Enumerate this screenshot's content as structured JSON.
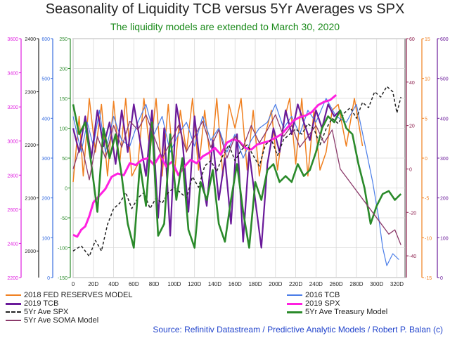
{
  "title": "Seasonality of Liquidity TCB versus 5Yr Averages vs SPX",
  "subtitle": "The liquidity models are extended to March 30, 2020",
  "source": "Source: Refinitiv Datastream / Predictive Analytic Models / Robert P. Balan (c)",
  "chart_data": {
    "type": "line",
    "x_labels": [
      "0",
      "20D",
      "40D",
      "60D",
      "80D",
      "100D",
      "120D",
      "140D",
      "160D",
      "180D",
      "200D",
      "220D",
      "240D",
      "260D",
      "280D",
      "300D",
      "320D"
    ],
    "xlim": [
      0,
      328
    ],
    "grid": true,
    "axes": {
      "spx_magenta": {
        "color": "#e020e0",
        "ticks": [
          "2200",
          "2400",
          "2600",
          "2800",
          "3000",
          "3200",
          "3400",
          "3600"
        ],
        "range": [
          2200,
          3600
        ]
      },
      "tcb_black": {
        "color": "#222222",
        "ticks": [
          "2000",
          "2100",
          "2200",
          "2300",
          "2400"
        ],
        "range": [
          1950,
          2400
        ]
      },
      "blue": {
        "color": "#3a6fe0",
        "ticks": [
          "0",
          "100",
          "200",
          "300",
          "400",
          "500",
          "600"
        ],
        "range": [
          0,
          600
        ]
      },
      "green": {
        "color": "#2a8a2a",
        "ticks": [
          "-150",
          "-100",
          "-50",
          "0",
          "50",
          "100",
          "150",
          "200",
          "250"
        ],
        "range": [
          -150,
          250
        ]
      },
      "maroon": {
        "color": "#8b1a4a",
        "ticks": [
          "-40",
          "-20",
          "0",
          "20",
          "40",
          "60"
        ],
        "range": [
          -50,
          60
        ]
      },
      "orange": {
        "color": "#f08020",
        "ticks": [
          "-15",
          "-10",
          "-5",
          "0",
          "5",
          "10",
          "15"
        ],
        "range": [
          -15,
          15
        ]
      },
      "purple": {
        "color": "#6a1a9a",
        "ticks": [
          "0",
          "100",
          "200",
          "300",
          "400",
          "500",
          "600"
        ],
        "range": [
          0,
          600
        ]
      }
    },
    "series": [
      {
        "name": "2018 FED RESERVES MODEL",
        "color": "#f08020",
        "style": "solid",
        "width": 1.5,
        "axis": "green",
        "x": [
          0,
          6,
          10,
          16,
          22,
          28,
          34,
          40,
          46,
          52,
          58,
          64,
          70,
          76,
          82,
          88,
          94,
          100,
          106,
          112,
          118,
          124,
          130,
          136,
          142,
          148,
          154,
          160,
          166,
          172,
          178,
          184,
          190,
          196,
          202,
          208,
          214,
          220,
          226,
          232,
          238,
          244,
          250,
          256,
          262,
          270,
          278,
          286
        ],
        "y": [
          10,
          120,
          20,
          150,
          60,
          140,
          20,
          145,
          40,
          150,
          20,
          40,
          150,
          60,
          150,
          20,
          140,
          20,
          130,
          60,
          150,
          30,
          130,
          40,
          150,
          20,
          140,
          100,
          150,
          30,
          130,
          20,
          90,
          130,
          30,
          110,
          150,
          40,
          150,
          20,
          130,
          30,
          60,
          130,
          140,
          70,
          150,
          70
        ]
      },
      {
        "name": "2016 TCB",
        "color": "#4a7de8",
        "style": "solid",
        "width": 1.2,
        "axis": "green",
        "x": [
          0,
          8,
          14,
          20,
          26,
          32,
          40,
          48,
          56,
          64,
          72,
          80,
          88,
          96,
          104,
          112,
          120,
          128,
          136,
          144,
          152,
          160,
          168,
          176,
          184,
          192,
          200,
          208,
          216,
          224,
          232,
          240,
          250,
          260,
          270,
          280,
          290,
          296,
          302,
          306,
          310,
          316,
          322
        ],
        "y": [
          120,
          60,
          110,
          70,
          130,
          60,
          120,
          80,
          70,
          110,
          140,
          90,
          120,
          60,
          90,
          110,
          70,
          120,
          80,
          100,
          60,
          90,
          50,
          80,
          100,
          110,
          140,
          100,
          120,
          90,
          130,
          110,
          150,
          120,
          110,
          140,
          60,
          10,
          -50,
          -100,
          -130,
          -110,
          -120
        ]
      },
      {
        "name": "2019 TCB",
        "color": "#6a1a9a",
        "style": "solid",
        "width": 2.2,
        "axis": "green",
        "x": [
          0,
          6,
          12,
          18,
          24,
          30,
          36,
          42,
          48,
          54,
          60,
          66,
          72,
          78,
          84,
          90,
          96,
          102,
          108,
          114,
          120,
          126,
          132,
          138,
          144,
          150,
          156,
          162,
          168,
          174,
          180,
          186,
          192,
          198,
          204,
          210,
          216,
          222,
          228,
          234,
          240,
          246,
          252,
          258,
          264
        ],
        "y": [
          100,
          60,
          120,
          50,
          130,
          70,
          110,
          40,
          130,
          60,
          140,
          80,
          20,
          130,
          -50,
          100,
          -80,
          140,
          80,
          -40,
          120,
          30,
          -30,
          80,
          -20,
          50,
          -60,
          90,
          -90,
          60,
          -20,
          -100,
          40,
          100,
          60,
          130,
          90,
          140,
          110,
          80,
          130,
          100,
          140,
          120,
          130
        ]
      },
      {
        "name": "2019 SPX",
        "color": "#ff20e0",
        "style": "solid",
        "width": 3.0,
        "axis": "spx_magenta",
        "x": [
          0,
          4,
          8,
          12,
          16,
          20,
          26,
          32,
          38,
          44,
          50,
          56,
          62,
          68,
          74,
          80,
          86,
          92,
          98,
          104,
          110,
          116,
          122,
          128,
          134,
          140,
          146,
          152,
          158,
          164,
          170,
          176,
          182,
          188,
          194,
          200,
          206,
          212,
          218,
          224,
          230,
          236,
          242,
          248,
          254,
          260
        ],
        "y": [
          2450,
          2440,
          2480,
          2500,
          2560,
          2640,
          2680,
          2720,
          2790,
          2810,
          2800,
          2870,
          2860,
          2890,
          2900,
          2860,
          2920,
          2850,
          2880,
          2800,
          2850,
          2890,
          2870,
          2910,
          2930,
          2960,
          2920,
          2990,
          3010,
          3000,
          2960,
          2950,
          2980,
          2990,
          3000,
          3020,
          3040,
          3080,
          3120,
          3140,
          3150,
          3170,
          3210,
          3230,
          3240,
          3270
        ]
      },
      {
        "name": "5Yr Ave SPX",
        "color": "#222222",
        "style": "dashed",
        "width": 1.5,
        "axis": "tcb_black",
        "x": [
          0,
          8,
          16,
          22,
          28,
          34,
          40,
          46,
          52,
          58,
          64,
          70,
          76,
          82,
          88,
          94,
          100,
          106,
          112,
          118,
          124,
          130,
          136,
          142,
          148,
          154,
          160,
          166,
          172,
          178,
          184,
          190,
          196,
          202,
          208,
          214,
          220,
          226,
          232,
          238,
          244,
          250,
          256,
          262,
          268,
          274,
          280,
          286,
          292,
          298,
          304,
          310,
          316,
          320,
          324
        ],
        "y": [
          2000,
          2010,
          1990,
          2020,
          2000,
          2050,
          2080,
          2090,
          2110,
          2080,
          2100,
          2110,
          2080,
          2100,
          2090,
          2110,
          2120,
          2110,
          2100,
          2140,
          2120,
          2160,
          2170,
          2150,
          2180,
          2200,
          2170,
          2190,
          2200,
          2180,
          2160,
          2200,
          2210,
          2180,
          2210,
          2220,
          2230,
          2220,
          2240,
          2230,
          2200,
          2230,
          2250,
          2240,
          2260,
          2270,
          2250,
          2280,
          2270,
          2300,
          2290,
          2310,
          2300,
          2260,
          2290
        ]
      },
      {
        "name": "5Yr Ave Treasury Model",
        "color": "#2a8a2a",
        "style": "solid",
        "width": 2.6,
        "axis": "green",
        "x": [
          0,
          6,
          12,
          18,
          24,
          30,
          36,
          42,
          48,
          54,
          60,
          66,
          72,
          78,
          84,
          90,
          96,
          102,
          108,
          114,
          120,
          126,
          132,
          138,
          144,
          150,
          156,
          162,
          168,
          174,
          180,
          186,
          192,
          198,
          204,
          210,
          216,
          222,
          228,
          234,
          240,
          246,
          252,
          258,
          264,
          270,
          276,
          282,
          288,
          294,
          300,
          306,
          312,
          318,
          324
        ],
        "y": [
          140,
          90,
          110,
          40,
          -40,
          100,
          50,
          90,
          20,
          -60,
          -100,
          40,
          -30,
          110,
          -80,
          -60,
          90,
          -20,
          50,
          -70,
          -100,
          10,
          -20,
          30,
          -60,
          -90,
          -20,
          40,
          -40,
          -100,
          10,
          -20,
          30,
          40,
          10,
          20,
          10,
          40,
          20,
          30,
          60,
          100,
          120,
          110,
          130,
          100,
          90,
          40,
          0,
          -60,
          -30,
          -10,
          -5,
          -20,
          -10
        ]
      },
      {
        "name": "5Yr Ave SOMA Model",
        "color": "#8b3a6a",
        "style": "solid",
        "width": 1.3,
        "axis": "maroon",
        "x": [
          0,
          8,
          16,
          24,
          32,
          40,
          48,
          56,
          64,
          72,
          80,
          88,
          96,
          104,
          112,
          120,
          128,
          136,
          144,
          152,
          160,
          168,
          176,
          184,
          192,
          200,
          208,
          216,
          224,
          232,
          240,
          248,
          256,
          264,
          272,
          280,
          288,
          296,
          304,
          312,
          318,
          324
        ],
        "y": [
          0,
          12,
          -5,
          15,
          5,
          20,
          10,
          22,
          18,
          25,
          15,
          5,
          12,
          20,
          8,
          15,
          22,
          10,
          18,
          5,
          15,
          10,
          20,
          12,
          18,
          25,
          15,
          20,
          10,
          15,
          20,
          12,
          18,
          0,
          -5,
          -10,
          -15,
          -20,
          -25,
          -30,
          -28,
          -35
        ]
      }
    ]
  }
}
